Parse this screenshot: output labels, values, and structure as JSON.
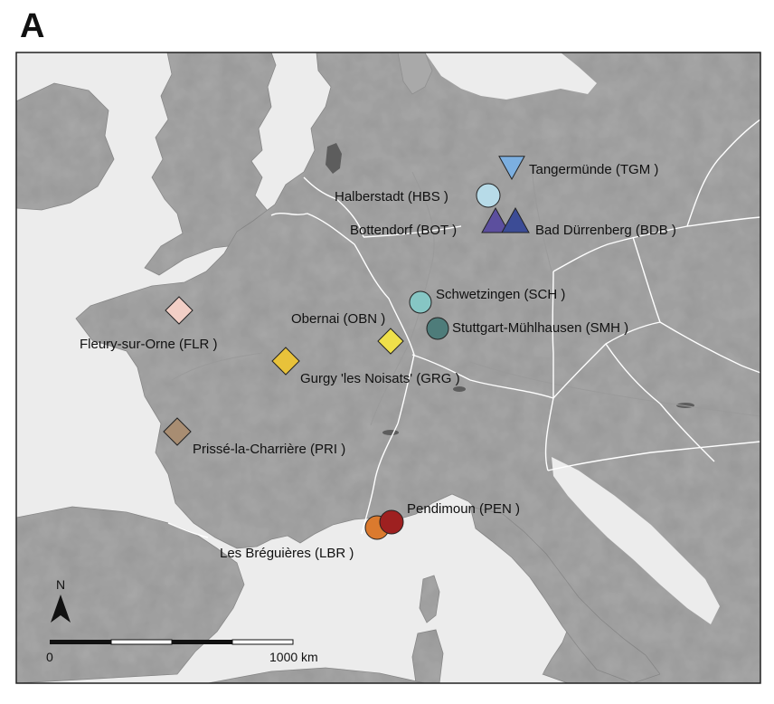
{
  "panel_label": "A",
  "compass_label": "N",
  "scale_bar": {
    "start_label": "0",
    "end_label": "1000 km"
  },
  "colors": {
    "sea": "#ececec",
    "land": "#a9a9a9",
    "border": "#ffffff",
    "frame": "#222222"
  },
  "sites": [
    {
      "name": "Tangermünde (TGM )",
      "shape": "triangle-down",
      "color": "#7cafe0"
    },
    {
      "name": "Halberstadt (HBS )",
      "shape": "circle",
      "color": "#b7dbe8"
    },
    {
      "name": "Bottendorf (BOT )",
      "shape": "triangle-up",
      "color": "#5c4f9e"
    },
    {
      "name": "Bad Dürrenberg (BDB )",
      "shape": "triangle-up",
      "color": "#3c4c96"
    },
    {
      "name": "Schwetzingen (SCH )",
      "shape": "circle",
      "color": "#86c6c4"
    },
    {
      "name": "Stuttgart-Mühlhausen (SMH )",
      "shape": "circle",
      "color": "#4e7c7a"
    },
    {
      "name": "Obernai (OBN )",
      "shape": "diamond",
      "color": "#efe04a"
    },
    {
      "name": "Fleury-sur-Orne (FLR )",
      "shape": "diamond",
      "color": "#f2cfc6"
    },
    {
      "name": "Gurgy 'les Noisats' (GRG )",
      "shape": "diamond",
      "color": "#e8c23a"
    },
    {
      "name": "Prissé-la-Charrière (PRI )",
      "shape": "diamond",
      "color": "#a88d72"
    },
    {
      "name": "Pendimoun (PEN )",
      "shape": "circle",
      "color": "#9e2020"
    },
    {
      "name": "Les Bréguières (LBR )",
      "shape": "circle",
      "color": "#db7a2e"
    }
  ]
}
